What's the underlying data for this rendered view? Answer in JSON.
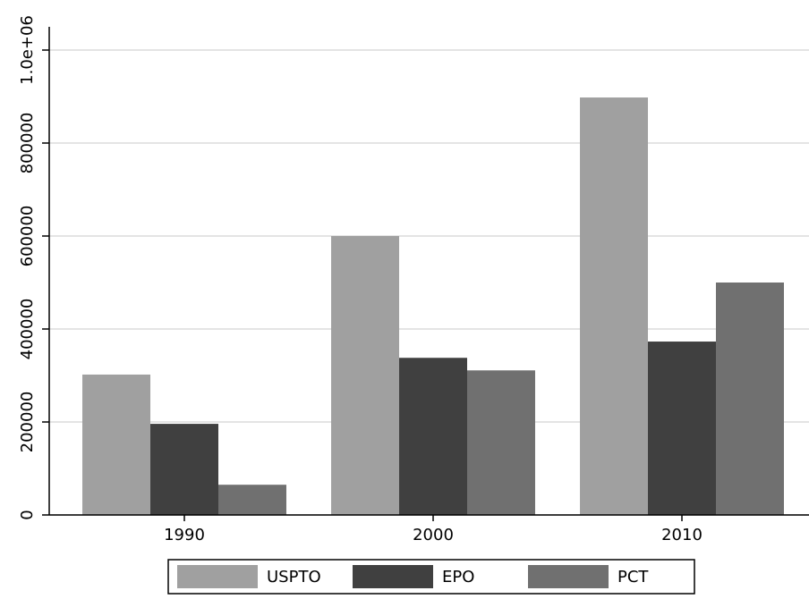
{
  "chart_data": {
    "type": "bar",
    "categories": [
      "1990",
      "2000",
      "2010"
    ],
    "series": [
      {
        "name": "USPTO",
        "color": "#a0a0a0",
        "values": [
          302000,
          600000,
          898000
        ]
      },
      {
        "name": "EPO",
        "color": "#404040",
        "values": [
          196000,
          338000,
          373000
        ]
      },
      {
        "name": "PCT",
        "color": "#707070",
        "values": [
          65000,
          311000,
          500000
        ]
      }
    ],
    "ylim": [
      0,
      1050000
    ],
    "yticks": [
      0,
      200000,
      400000,
      600000,
      800000,
      {
        "value": 1000000,
        "label": "1.0e+06"
      }
    ],
    "grid": true,
    "legend": "bottom"
  }
}
